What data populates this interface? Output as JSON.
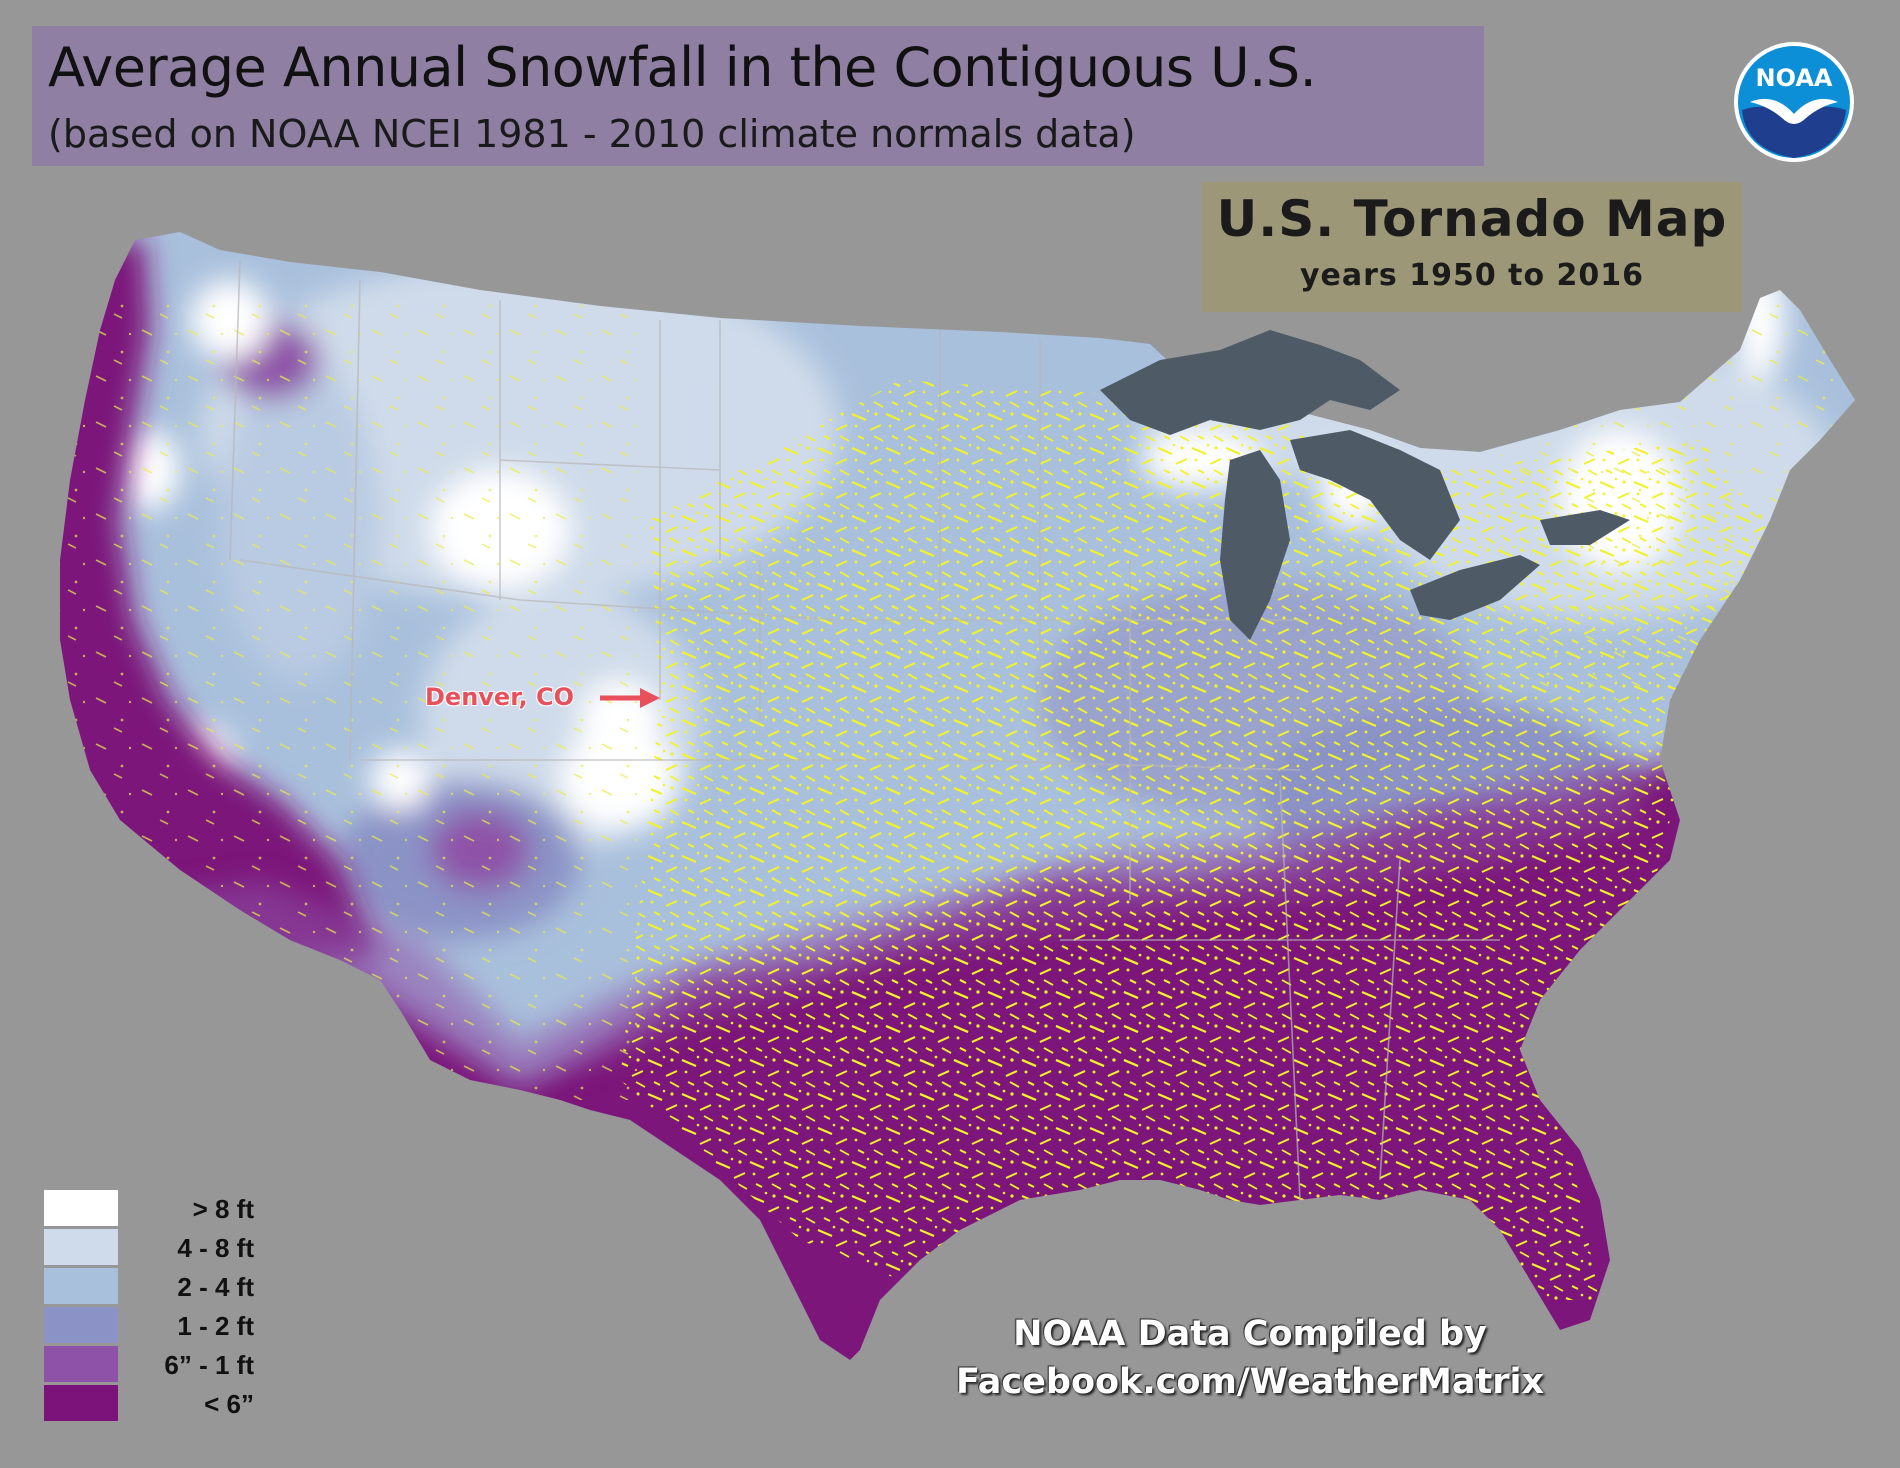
{
  "title": "Average Annual Snowfall in the Contiguous U.S.",
  "subtitle": "(based on NOAA NCEI 1981 - 2010 climate normals data)",
  "logo": {
    "text": "NOAA",
    "icon": "noaa-gull-logo",
    "color": "#0c8fd6"
  },
  "overlay": {
    "title": "U.S. Tornado Map",
    "subtitle": "years 1950 to 2016"
  },
  "annotation": {
    "label": "Denver, CO",
    "icon": "arrow-right-icon",
    "color": "#e8505b"
  },
  "legend": [
    {
      "label": "> 8 ft",
      "color": "#ffffff"
    },
    {
      "label": "4 - 8 ft",
      "color": "#cfdbea"
    },
    {
      "label": "2 - 4 ft",
      "color": "#a9c0dc"
    },
    {
      "label": "1 - 2 ft",
      "color": "#8b93c6"
    },
    {
      "label": "6” - 1 ft",
      "color": "#8e52a8"
    },
    {
      "label": "< 6”",
      "color": "#7b137a"
    }
  ],
  "credit": {
    "line1": "NOAA Data Compiled by",
    "line2": "Facebook.com/WeatherMatrix"
  },
  "colors": {
    "background": "#979797",
    "tornado": "#f2f22a",
    "lakes": "#4e5b67",
    "state_lines": "#b7b7b7"
  }
}
